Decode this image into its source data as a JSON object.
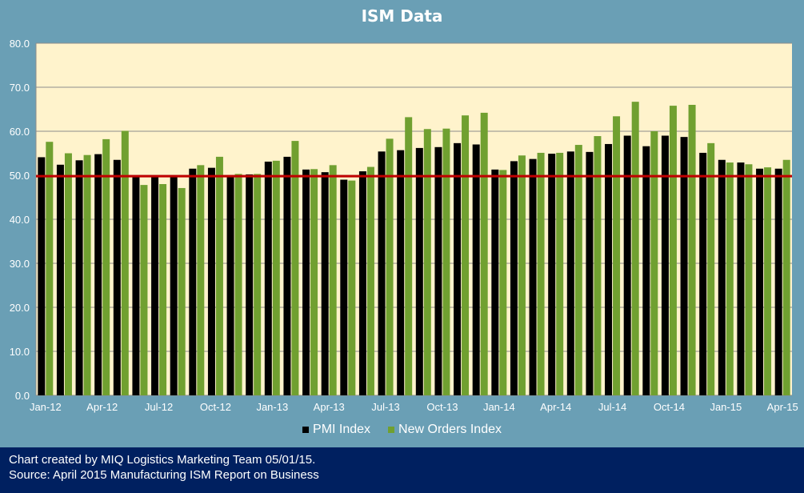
{
  "chart_data": {
    "type": "bar",
    "title": "ISM Data",
    "xlabel": "",
    "ylabel": "",
    "ylim": [
      0,
      80
    ],
    "yticks": [
      "0.0",
      "10.0",
      "20.0",
      "30.0",
      "40.0",
      "50.0",
      "60.0",
      "70.0",
      "80.0"
    ],
    "grid": true,
    "legend_position": "bottom",
    "categories": [
      "Jan-12",
      "Feb-12",
      "Mar-12",
      "Apr-12",
      "May-12",
      "Jun-12",
      "Jul-12",
      "Aug-12",
      "Sep-12",
      "Oct-12",
      "Nov-12",
      "Dec-12",
      "Jan-13",
      "Feb-13",
      "Mar-13",
      "Apr-13",
      "May-13",
      "Jun-13",
      "Jul-13",
      "Aug-13",
      "Sep-13",
      "Oct-13",
      "Nov-13",
      "Dec-13",
      "Jan-14",
      "Feb-14",
      "Mar-14",
      "Apr-14",
      "May-14",
      "Jun-14",
      "Jul-14",
      "Aug-14",
      "Sep-14",
      "Oct-14",
      "Nov-14",
      "Dec-14",
      "Jan-15",
      "Feb-15",
      "Mar-15",
      "Apr-15"
    ],
    "tick_labels": [
      "Jan-12",
      "",
      "",
      "Apr-12",
      "",
      "",
      "Jul-12",
      "",
      "",
      "Oct-12",
      "",
      "",
      "Jan-13",
      "",
      "",
      "Apr-13",
      "",
      "",
      "Jul-13",
      "",
      "",
      "Oct-13",
      "",
      "",
      "Jan-14",
      "",
      "",
      "Apr-14",
      "",
      "",
      "Jul-14",
      "",
      "",
      "Oct-14",
      "",
      "",
      "Jan-15",
      "",
      "",
      "Apr-15"
    ],
    "series": [
      {
        "name": "PMI Index",
        "color": "#000000",
        "values": [
          54.1,
          52.4,
          53.4,
          54.8,
          53.5,
          49.7,
          49.8,
          49.6,
          51.5,
          51.7,
          49.9,
          50.2,
          53.1,
          54.2,
          51.3,
          50.7,
          49.0,
          50.9,
          55.4,
          55.7,
          56.2,
          56.4,
          57.3,
          57.0,
          51.3,
          53.2,
          53.7,
          54.9,
          55.4,
          55.3,
          57.1,
          59.0,
          56.6,
          59.0,
          58.7,
          55.1,
          53.5,
          52.9,
          51.5,
          51.5
        ]
      },
      {
        "name": "New Orders Index",
        "color": "#70a030",
        "values": [
          57.6,
          55.0,
          54.6,
          58.2,
          60.1,
          47.8,
          48.0,
          47.1,
          52.3,
          54.2,
          50.3,
          50.3,
          53.3,
          57.8,
          51.4,
          52.3,
          48.8,
          51.9,
          58.3,
          63.2,
          60.5,
          60.6,
          63.6,
          64.2,
          51.2,
          54.5,
          55.1,
          55.1,
          56.9,
          58.9,
          63.4,
          66.7,
          60.0,
          65.8,
          66.0,
          57.3,
          52.9,
          52.5,
          51.8,
          53.5
        ]
      }
    ],
    "reference_line": {
      "value": 49.8,
      "color": "#c00000"
    }
  },
  "colors": {
    "panel": "#6a9fb5",
    "plot": "#fff3cc",
    "footer": "#002060"
  },
  "footer": {
    "line1": "Chart created by MIQ Logistics Marketing Team 05/01/15.",
    "line2": "Source: April 2015 Manufacturing ISM Report on Business"
  }
}
